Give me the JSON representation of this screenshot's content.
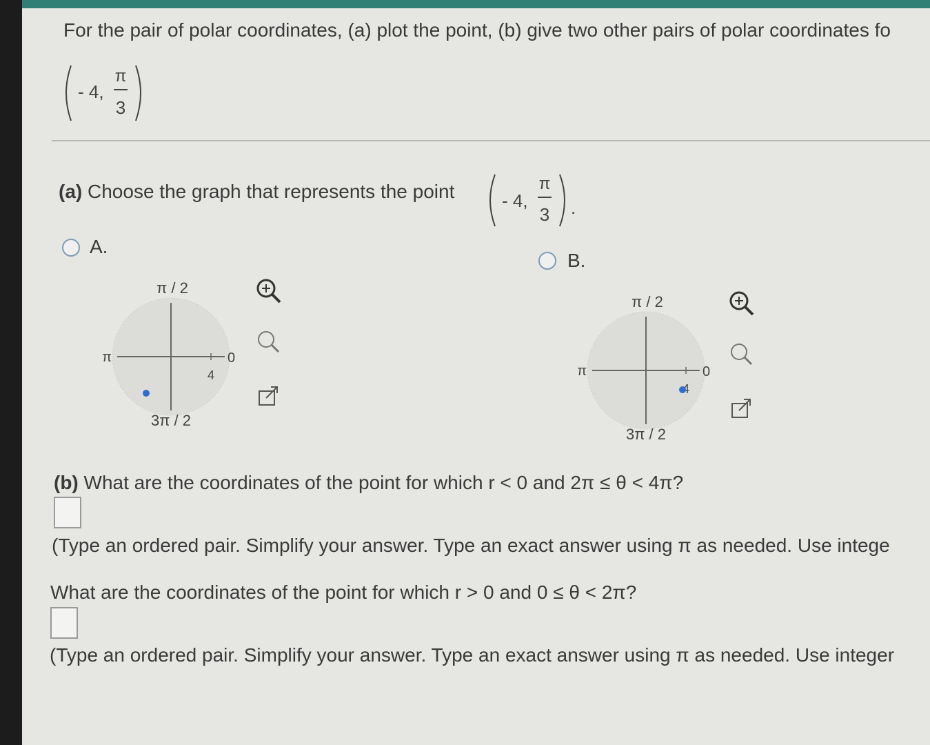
{
  "intro": {
    "text": "For the pair of polar coordinates, (a) plot the point, (b) give two other pairs of polar coordinates fo",
    "point": {
      "r": "- 4,",
      "theta_num": "π",
      "theta_den": "3"
    }
  },
  "part_a": {
    "label": "(a)",
    "text": "Choose the graph that represents the point",
    "point": {
      "r": "- 4,",
      "theta_num": "π",
      "theta_den": "3"
    },
    "end": "."
  },
  "options": [
    {
      "label": "A.",
      "graph": {
        "top": "π / 2",
        "left": "π",
        "right": "0",
        "tick": "4",
        "bottom": "3π / 2"
      }
    },
    {
      "label": "B.",
      "graph": {
        "top": "π / 2",
        "left": "π",
        "right": "0",
        "tick": "4",
        "bottom": "3π / 2"
      }
    }
  ],
  "part_b": {
    "label": "(b)",
    "question_1": "What are the coordinates of the point for which r < 0 and 2π ≤ θ < 4π?",
    "hint_1": "(Type an ordered pair. Simplify your answer. Type an exact answer using π as needed. Use intege",
    "question_2": "What are the coordinates of the point for which r > 0 and 0 ≤ θ < 2π?",
    "hint_2": "(Type an ordered pair. Simplify your answer. Type an exact answer using π as needed. Use integer"
  }
}
